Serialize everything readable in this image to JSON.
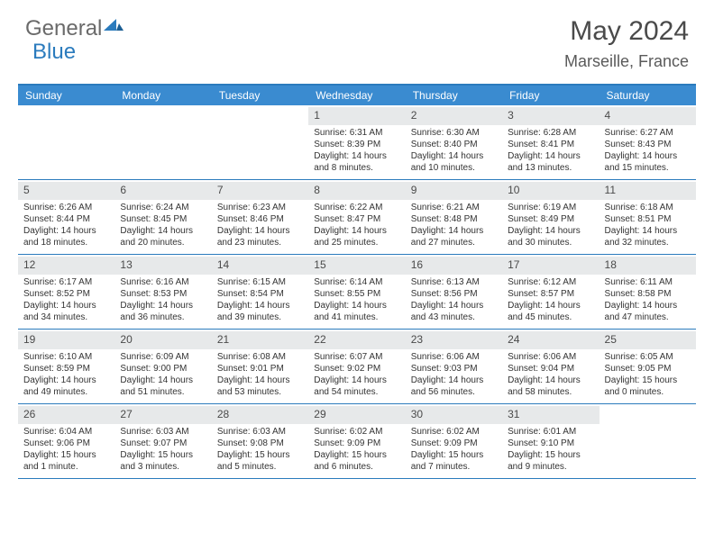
{
  "brand": {
    "part1": "General",
    "part2": "Blue"
  },
  "title": "May 2024",
  "location": "Marseille, France",
  "colors": {
    "header_bar": "#3a8bd0",
    "border": "#2b7bbd",
    "daynum_bg": "#e7e9ea",
    "text": "#333333",
    "title": "#4a4a4a"
  },
  "days_of_week": [
    "Sunday",
    "Monday",
    "Tuesday",
    "Wednesday",
    "Thursday",
    "Friday",
    "Saturday"
  ],
  "weeks": [
    [
      {
        "n": "",
        "sr": "",
        "ss": "",
        "dl": ""
      },
      {
        "n": "",
        "sr": "",
        "ss": "",
        "dl": ""
      },
      {
        "n": "",
        "sr": "",
        "ss": "",
        "dl": ""
      },
      {
        "n": "1",
        "sr": "6:31 AM",
        "ss": "8:39 PM",
        "dl": "14 hours and 8 minutes."
      },
      {
        "n": "2",
        "sr": "6:30 AM",
        "ss": "8:40 PM",
        "dl": "14 hours and 10 minutes."
      },
      {
        "n": "3",
        "sr": "6:28 AM",
        "ss": "8:41 PM",
        "dl": "14 hours and 13 minutes."
      },
      {
        "n": "4",
        "sr": "6:27 AM",
        "ss": "8:43 PM",
        "dl": "14 hours and 15 minutes."
      }
    ],
    [
      {
        "n": "5",
        "sr": "6:26 AM",
        "ss": "8:44 PM",
        "dl": "14 hours and 18 minutes."
      },
      {
        "n": "6",
        "sr": "6:24 AM",
        "ss": "8:45 PM",
        "dl": "14 hours and 20 minutes."
      },
      {
        "n": "7",
        "sr": "6:23 AM",
        "ss": "8:46 PM",
        "dl": "14 hours and 23 minutes."
      },
      {
        "n": "8",
        "sr": "6:22 AM",
        "ss": "8:47 PM",
        "dl": "14 hours and 25 minutes."
      },
      {
        "n": "9",
        "sr": "6:21 AM",
        "ss": "8:48 PM",
        "dl": "14 hours and 27 minutes."
      },
      {
        "n": "10",
        "sr": "6:19 AM",
        "ss": "8:49 PM",
        "dl": "14 hours and 30 minutes."
      },
      {
        "n": "11",
        "sr": "6:18 AM",
        "ss": "8:51 PM",
        "dl": "14 hours and 32 minutes."
      }
    ],
    [
      {
        "n": "12",
        "sr": "6:17 AM",
        "ss": "8:52 PM",
        "dl": "14 hours and 34 minutes."
      },
      {
        "n": "13",
        "sr": "6:16 AM",
        "ss": "8:53 PM",
        "dl": "14 hours and 36 minutes."
      },
      {
        "n": "14",
        "sr": "6:15 AM",
        "ss": "8:54 PM",
        "dl": "14 hours and 39 minutes."
      },
      {
        "n": "15",
        "sr": "6:14 AM",
        "ss": "8:55 PM",
        "dl": "14 hours and 41 minutes."
      },
      {
        "n": "16",
        "sr": "6:13 AM",
        "ss": "8:56 PM",
        "dl": "14 hours and 43 minutes."
      },
      {
        "n": "17",
        "sr": "6:12 AM",
        "ss": "8:57 PM",
        "dl": "14 hours and 45 minutes."
      },
      {
        "n": "18",
        "sr": "6:11 AM",
        "ss": "8:58 PM",
        "dl": "14 hours and 47 minutes."
      }
    ],
    [
      {
        "n": "19",
        "sr": "6:10 AM",
        "ss": "8:59 PM",
        "dl": "14 hours and 49 minutes."
      },
      {
        "n": "20",
        "sr": "6:09 AM",
        "ss": "9:00 PM",
        "dl": "14 hours and 51 minutes."
      },
      {
        "n": "21",
        "sr": "6:08 AM",
        "ss": "9:01 PM",
        "dl": "14 hours and 53 minutes."
      },
      {
        "n": "22",
        "sr": "6:07 AM",
        "ss": "9:02 PM",
        "dl": "14 hours and 54 minutes."
      },
      {
        "n": "23",
        "sr": "6:06 AM",
        "ss": "9:03 PM",
        "dl": "14 hours and 56 minutes."
      },
      {
        "n": "24",
        "sr": "6:06 AM",
        "ss": "9:04 PM",
        "dl": "14 hours and 58 minutes."
      },
      {
        "n": "25",
        "sr": "6:05 AM",
        "ss": "9:05 PM",
        "dl": "15 hours and 0 minutes."
      }
    ],
    [
      {
        "n": "26",
        "sr": "6:04 AM",
        "ss": "9:06 PM",
        "dl": "15 hours and 1 minute."
      },
      {
        "n": "27",
        "sr": "6:03 AM",
        "ss": "9:07 PM",
        "dl": "15 hours and 3 minutes."
      },
      {
        "n": "28",
        "sr": "6:03 AM",
        "ss": "9:08 PM",
        "dl": "15 hours and 5 minutes."
      },
      {
        "n": "29",
        "sr": "6:02 AM",
        "ss": "9:09 PM",
        "dl": "15 hours and 6 minutes."
      },
      {
        "n": "30",
        "sr": "6:02 AM",
        "ss": "9:09 PM",
        "dl": "15 hours and 7 minutes."
      },
      {
        "n": "31",
        "sr": "6:01 AM",
        "ss": "9:10 PM",
        "dl": "15 hours and 9 minutes."
      },
      {
        "n": "",
        "sr": "",
        "ss": "",
        "dl": ""
      }
    ]
  ],
  "labels": {
    "sunrise": "Sunrise:",
    "sunset": "Sunset:",
    "daylight": "Daylight:"
  }
}
